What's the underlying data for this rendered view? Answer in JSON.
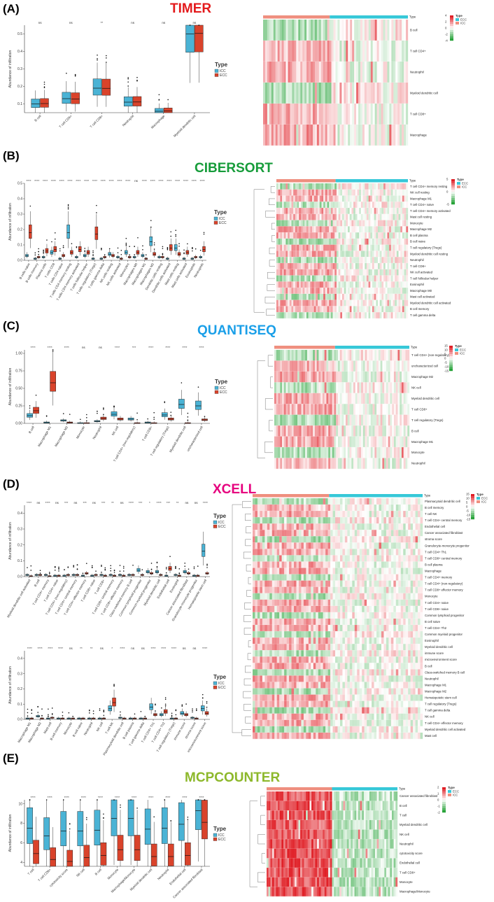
{
  "colors": {
    "icc": "#4ab3d5",
    "ecc": "#d9432b",
    "icc_bar": "#36c8d8",
    "ecc_bar": "#ef8f7f",
    "hm_high": "#e01f26",
    "hm_low": "#27a339",
    "hm_mid": "#ffffff",
    "timer": "#e31a1c",
    "cibersort": "#169c3a",
    "quantiseq": "#1a9fe8",
    "xcell": "#e6007e",
    "mcp": "#8db82b"
  },
  "common": {
    "ylabel": "Abundance of infiltration",
    "legend_title": "Type",
    "icc": "ICC",
    "ecc": "ECC",
    "hm_legend_title": "Type",
    "hm_col_label": "Type"
  },
  "panels": [
    {
      "id": "A",
      "label": "(A)",
      "title": "TIMER",
      "color_key": "timer"
    },
    {
      "id": "B",
      "label": "(B)",
      "title": "CIBERSORT",
      "color_key": "cibersort"
    },
    {
      "id": "C",
      "label": "(C)",
      "title": "QUANTISEQ",
      "color_key": "quantiseq"
    },
    {
      "id": "D",
      "label": "(D)",
      "title": "XCELL",
      "color_key": "xcell"
    },
    {
      "id": "E",
      "label": "(E)",
      "title": "MCPCOUNTER",
      "color_key": "mcp"
    }
  ],
  "chart_data": [
    {
      "type": "box",
      "panel": "A",
      "ylim": [
        0.05,
        0.55
      ],
      "yticks": [
        "0.1",
        "0.2",
        "0.3",
        "0.4",
        "0.5"
      ],
      "ytickvals": [
        0.1,
        0.2,
        0.3,
        0.4,
        0.5
      ],
      "legend_order": [
        "ICC",
        "ECC"
      ],
      "categories": [
        "B cell",
        "T cell CD4+",
        "T cell CD8+",
        "Neutrophil",
        "Macrophage",
        "Myeloid dendritic cell"
      ],
      "sig": [
        "ns",
        "ns",
        "**",
        "ns",
        "ns",
        "ns"
      ],
      "series": [
        {
          "name": "ICC",
          "median": [
            0.1,
            0.13,
            0.19,
            0.11,
            0.058,
            0.5
          ]
        },
        {
          "name": "ECC",
          "median": [
            0.102,
            0.128,
            0.189,
            0.111,
            0.06,
            0.503
          ]
        }
      ]
    },
    {
      "type": "box",
      "panel": "B",
      "ylim": [
        0,
        0.5
      ],
      "yticks": [
        "0.0",
        "0.1",
        "0.2",
        "0.3",
        "0.4",
        "0.5"
      ],
      "ytickvals": [
        0,
        0.1,
        0.2,
        0.3,
        0.4,
        0.5
      ],
      "legend_order": [
        "ICC",
        "ECC"
      ],
      "categories": [
        "B cells naive",
        "B cells memory",
        "Plasma cells",
        "T cells CD8",
        "T cells CD4 naive",
        "T cells CD4 memory resting",
        "T cells CD4 memory activated",
        "T cells follicular helper",
        "T cells regulatory (Tregs)",
        "T cells gamma delta",
        "NK cells resting",
        "NK cells activated",
        "Monocytes",
        "Macrophages M0",
        "Macrophages M1",
        "Macrophages M2",
        "Dendritic cells resting",
        "Dendritic cells activated",
        "Mast cells resting",
        "Mast cells activated",
        "Eosinophils",
        "Neutrophils"
      ],
      "sig": [
        "****",
        "****",
        "****",
        "****",
        "****",
        "****",
        "****",
        "****",
        "****",
        "****",
        "****",
        "****",
        "****",
        "ns",
        "****",
        "****",
        "****",
        "****",
        "****",
        "****",
        "****",
        "****"
      ],
      "series": [
        {
          "name": "ICC",
          "median": [
            0.03,
            0.01,
            0.02,
            0.05,
            0.01,
            0.18,
            0.02,
            0.03,
            0.01,
            0.01,
            0.04,
            0.02,
            0.05,
            0.02,
            0.03,
            0.12,
            0.02,
            0.01,
            0.08,
            0.01,
            0.01,
            0.02
          ]
        },
        {
          "name": "ECC",
          "median": [
            0.18,
            0.02,
            0.06,
            0.07,
            0.03,
            0.05,
            0.07,
            0.05,
            0.17,
            0.02,
            0.03,
            0.01,
            0.02,
            0.05,
            0.01,
            0.04,
            0.02,
            0.08,
            0.04,
            0.05,
            0.02,
            0.07
          ]
        }
      ]
    },
    {
      "type": "box",
      "panel": "C",
      "ylim": [
        0,
        1.05
      ],
      "yticks": [
        "0.00",
        "0.25",
        "0.50",
        "0.75",
        "1.00"
      ],
      "ytickvals": [
        0,
        0.25,
        0.5,
        0.75,
        1
      ],
      "legend_order": [
        "ICC",
        "ECC"
      ],
      "categories": [
        "B cell",
        "Macrophage M1",
        "Macrophage M2",
        "Monocyte",
        "Neutrophil",
        "NK cell",
        "T cell CD4+ (non-regulatory)",
        "T cell CD8+",
        "T cell regulatory (Tregs)",
        "Myeloid dendritic cell",
        "uncharacterized cell"
      ],
      "sig": [
        "****",
        "****",
        "****",
        "ns",
        "ns",
        "****",
        "***",
        "****",
        "****",
        "****",
        "****"
      ],
      "series": [
        {
          "name": "ICC",
          "median": [
            0.11,
            0.01,
            0.04,
            0,
            0.03,
            0.13,
            0.06,
            0.01,
            0.12,
            0.27,
            0.25
          ]
        },
        {
          "name": "ECC",
          "median": [
            0.18,
            0.58,
            0.01,
            0,
            0.07,
            0.06,
            0,
            0,
            0.06,
            0,
            0.05
          ]
        }
      ]
    },
    {
      "type": "box",
      "panel": "D1",
      "ylim": [
        0,
        0.45
      ],
      "yticks": [
        "0.0",
        "0.1",
        "0.2",
        "0.3",
        "0.4"
      ],
      "ytickvals": [
        0,
        0.1,
        0.2,
        0.3,
        0.4
      ],
      "legend_order": [
        "ICC",
        "ECC"
      ],
      "categories": [
        "Myeloid dendritic cell activated",
        "B cell",
        "T cell CD4+ memory",
        "T cell CD4+ naive",
        "T cell CD4+ (non-regulatory)",
        "T cell CD4+ central memory",
        "T cell CD4+ effector memory",
        "T cell CD8+ naive",
        "T cell CD8+",
        "T cell CD8+ central memory",
        "T cell CD8+ effector memory",
        "Class-switched memory B cell",
        "Common lymphoid progenitor",
        "Common myeloid progenitor",
        "Myeloid dendritic cell",
        "Endothelial cell",
        "Eosinophil",
        "Cancer associated fibroblast",
        "Granulocyte-monocyte progenitor",
        "Hematopoietic stem cell"
      ],
      "sig": [
        "****",
        "ns",
        "****",
        "ns",
        "***",
        "ns",
        "***",
        "ns",
        "***",
        "**",
        "ns",
        "****",
        "***",
        "*",
        "****",
        "***",
        "**",
        "ns",
        "ns",
        "****"
      ],
      "series": [
        {
          "name": "ICC",
          "median": [
            0.01,
            0.01,
            0.01,
            0.005,
            0.005,
            0.01,
            0.005,
            0.005,
            0.01,
            0.01,
            0.01,
            0.01,
            0.04,
            0.03,
            0.03,
            0.005,
            0.01,
            0.03,
            0.005,
            0.16
          ]
        },
        {
          "name": "ECC",
          "median": [
            0.002,
            0.01,
            0.002,
            0.005,
            0.01,
            0.01,
            0.02,
            0.01,
            0.005,
            0.005,
            0.005,
            0.01,
            0.01,
            0.02,
            0.01,
            0.05,
            0.005,
            0.02,
            0.005,
            0.02
          ]
        }
      ]
    },
    {
      "type": "box",
      "panel": "D2",
      "ylim": [
        0,
        0.45
      ],
      "yticks": [
        "0.0",
        "0.1",
        "0.2",
        "0.3",
        "0.4"
      ],
      "ytickvals": [
        0,
        0.1,
        0.2,
        0.3,
        0.4
      ],
      "legend_order": [
        "ICC",
        "ECC"
      ],
      "categories": [
        "Macrophage M1",
        "Macrophage M2",
        "Mast cell",
        "B cell memory",
        "Monocyte",
        "B cell naive",
        "Neutrophil",
        "NK cell",
        "T cell NK",
        "Plasmacytoid dendritic cell",
        "B cell plasma",
        "T cell gamma delta",
        "T cell CD4+ Th1",
        "T cell CD4+ Th2",
        "T cell regulatory (Tregs)",
        "immune score",
        "stroma score",
        "microenvironment score"
      ],
      "sig": [
        "****",
        "****",
        "****",
        "****",
        "ns",
        "**",
        "**",
        "ns",
        "*",
        "****",
        "ns",
        "ns",
        "****",
        "****",
        "****",
        "ns",
        "ns",
        "****"
      ],
      "series": [
        {
          "name": "ICC",
          "median": [
            0.005,
            0.02,
            0.005,
            0.005,
            0.005,
            0.005,
            0.005,
            0.005,
            0.07,
            0.01,
            0.005,
            0.005,
            0.08,
            0.03,
            0.005,
            0.04,
            0.01,
            0.07
          ]
        },
        {
          "name": "ECC",
          "median": [
            0.005,
            0.005,
            0.01,
            0.005,
            0.005,
            0.005,
            0.005,
            0.005,
            0.11,
            0.005,
            0.005,
            0.005,
            0.03,
            0.05,
            0.005,
            0.03,
            0.005,
            0.04
          ]
        }
      ]
    },
    {
      "type": "box",
      "panel": "E",
      "ylim": [
        3.6,
        10.4
      ],
      "yticks": [
        "4",
        "6",
        "8",
        "10"
      ],
      "ytickvals": [
        4,
        6,
        8,
        10
      ],
      "legend_order": [
        "ICC",
        "ECC"
      ],
      "categories": [
        "T cell",
        "T cell CD8+",
        "cytotoxicity score",
        "NK cell",
        "B cell",
        "Monocyte",
        "Macrophage/Monocyte",
        "Myeloid dendritic cell",
        "Neutrophil",
        "Endothelial cell",
        "Cancer associated fibroblast"
      ],
      "sig": [
        "****",
        "****",
        "****",
        "****",
        "****",
        "****",
        "****",
        "****",
        "****",
        "****",
        "****"
      ],
      "series": [
        {
          "name": "ICC",
          "median": [
            7.5,
            6.7,
            7.2,
            7.2,
            7.3,
            8.5,
            8.5,
            7.4,
            7.5,
            7.9,
            9.3
          ]
        },
        {
          "name": "ECC",
          "median": [
            4.9,
            4.3,
            4.1,
            4.5,
            4.7,
            5.3,
            5.3,
            4.6,
            4.6,
            4.7,
            8.1
          ]
        }
      ]
    }
  ],
  "heatmaps": [
    {
      "panel": "A",
      "rows": [
        "B cell",
        "T cell CD4+",
        "Neutrophil",
        "Myeloid dendritic cell",
        "T cell CD8+",
        "Macrophage"
      ],
      "legend_ticks": [
        "4",
        "2",
        "0",
        "-2",
        "-4"
      ],
      "legend_order": [
        "ECC",
        "ICC"
      ],
      "icc_frac": 0.35
    },
    {
      "panel": "B",
      "rows": [
        "T cell CD4+ memory resting",
        "NK cell resting",
        "Macrophage M1",
        "T cell CD4+ naive",
        "T cell CD4+ memory activated",
        "Mast cell resting",
        "Monocyte",
        "Macrophage M2",
        "B cell plasma",
        "B cell naive",
        "T cell regulatory (Tregs)",
        "Myeloid dendritic cell resting",
        "Neutrophil",
        "T cell CD8+",
        "NK cell activated",
        "T cell follicular helper",
        "Eosinophil",
        "Macrophage M0",
        "Mast cell activated",
        "Myeloid dendritic cell activated",
        "B cell memory",
        "T cell gamma delta"
      ],
      "legend_ticks": [
        "5",
        "0",
        "-5"
      ],
      "legend_order": [
        "ECC",
        "ICC"
      ],
      "icc_frac": 0.38
    },
    {
      "panel": "C",
      "rows": [
        "T cell CD4+ (non-regulatory)",
        "uncharacterized cell",
        "Macrophage M2",
        "NK cell",
        "Myeloid dendritic cell",
        "T cell CD8+",
        "T cell regulatory (Tregs)",
        "B cell",
        "Macrophage M1",
        "Monocyte",
        "Neutrophil"
      ],
      "legend_ticks": [
        "15",
        "10",
        "5",
        "0",
        "-5",
        "-10",
        "-15"
      ],
      "legend_order": [
        "ECC",
        "ICC"
      ],
      "icc_frac": 0.43
    },
    {
      "panel": "D",
      "rows": [
        "Plasmacytoid dendritic cell",
        "B cell memory",
        "T cell NK",
        "T cell CD4+ central memory",
        "Endothelial cell",
        "Cancer associated fibroblast",
        "stroma score",
        "Granulocyte-monocyte progenitor",
        "T cell CD4+ Th1",
        "T cell CD8+ central memory",
        "B cell plasma",
        "Macrophage",
        "T cell CD4+ memory",
        "T cell CD4+ (non-regulatory)",
        "T cell CD8+ effector memory",
        "Monocyte",
        "T cell CD4+ naive",
        "T cell CD8+ naive",
        "Common lymphoid progenitor",
        "B cell naive",
        "T cell CD4+ Th2",
        "Common myeloid progenitor",
        "Eosinophil",
        "Myeloid dendritic cell",
        "immune score",
        "microenvironment score",
        "B cell",
        "Class-switched memory B cell",
        "Neutrophil",
        "Macrophage M1",
        "Macrophage M2",
        "Hematopoietic stem cell",
        "T cell regulatory (Tregs)",
        "T cell gamma delta",
        "NK cell",
        "T cell CD4+ effector memory",
        "Myeloid dendritic cell activated",
        "Mast cell"
      ],
      "legend_ticks": [
        "15",
        "10",
        "5",
        "0",
        "-5",
        "-10",
        "-15"
      ],
      "legend_order": [
        "ECC",
        "ICC"
      ],
      "icc_frac": 0.46
    },
    {
      "panel": "E",
      "rows": [
        "Cancer associated fibroblast",
        "B cell",
        "T cell",
        "Myeloid dendritic cell",
        "NK cell",
        "Neutrophil",
        "cytotoxicity score",
        "Endothelial cell",
        "T cell CD8+",
        "Monocyte",
        "Macrophage/Monocyte"
      ],
      "legend_ticks": [
        "2",
        "1",
        "0",
        "-1",
        "-2"
      ],
      "legend_order": [
        "ECC",
        "ICC"
      ],
      "icc_frac": 0.5
    }
  ]
}
